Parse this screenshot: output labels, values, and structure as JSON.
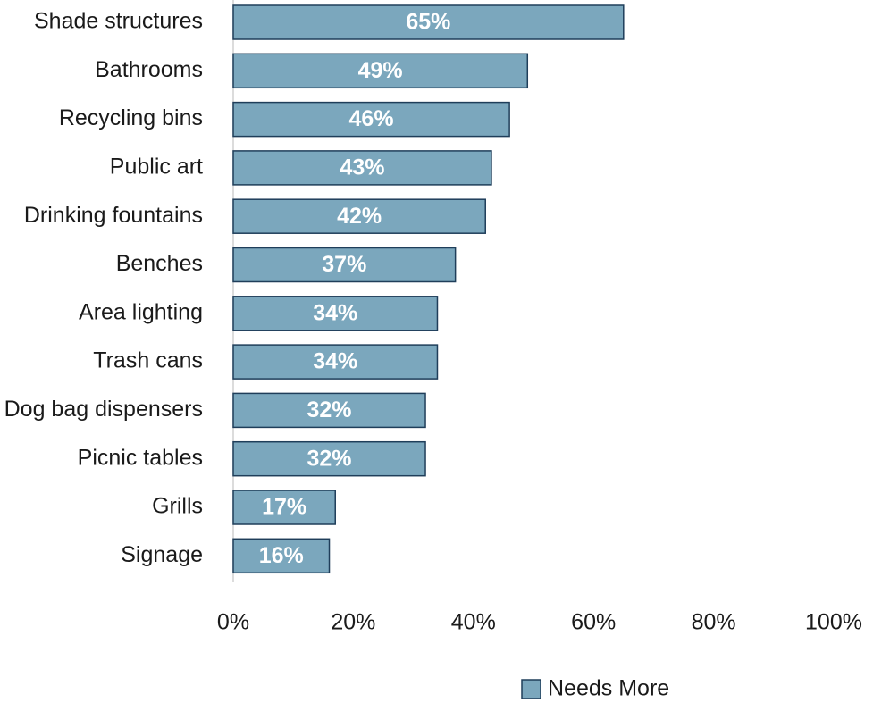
{
  "chart_data": {
    "type": "bar",
    "orientation": "horizontal",
    "categories": [
      "Shade structures",
      "Bathrooms",
      "Recycling bins",
      "Public art",
      "Drinking fountains",
      "Benches",
      "Area lighting",
      "Trash cans",
      "Dog bag dispensers",
      "Picnic tables",
      "Grills",
      "Signage"
    ],
    "series": [
      {
        "name": "Needs More",
        "color": "#7ba7bd",
        "edge_color": "#1f3e5a",
        "values": [
          65,
          49,
          46,
          43,
          42,
          37,
          34,
          34,
          32,
          32,
          17,
          16
        ],
        "value_labels": [
          "65%",
          "49%",
          "46%",
          "43%",
          "42%",
          "37%",
          "34%",
          "34%",
          "32%",
          "32%",
          "17%",
          "16%"
        ]
      }
    ],
    "xlim": [
      0,
      100
    ],
    "xticks": [
      {
        "value": 0,
        "label": "0%"
      },
      {
        "value": 20,
        "label": "20%"
      },
      {
        "value": 40,
        "label": "40%"
      },
      {
        "value": 60,
        "label": "60%"
      },
      {
        "value": 80,
        "label": "80%"
      },
      {
        "value": 100,
        "label": "100%"
      }
    ],
    "legend": "bottom"
  }
}
